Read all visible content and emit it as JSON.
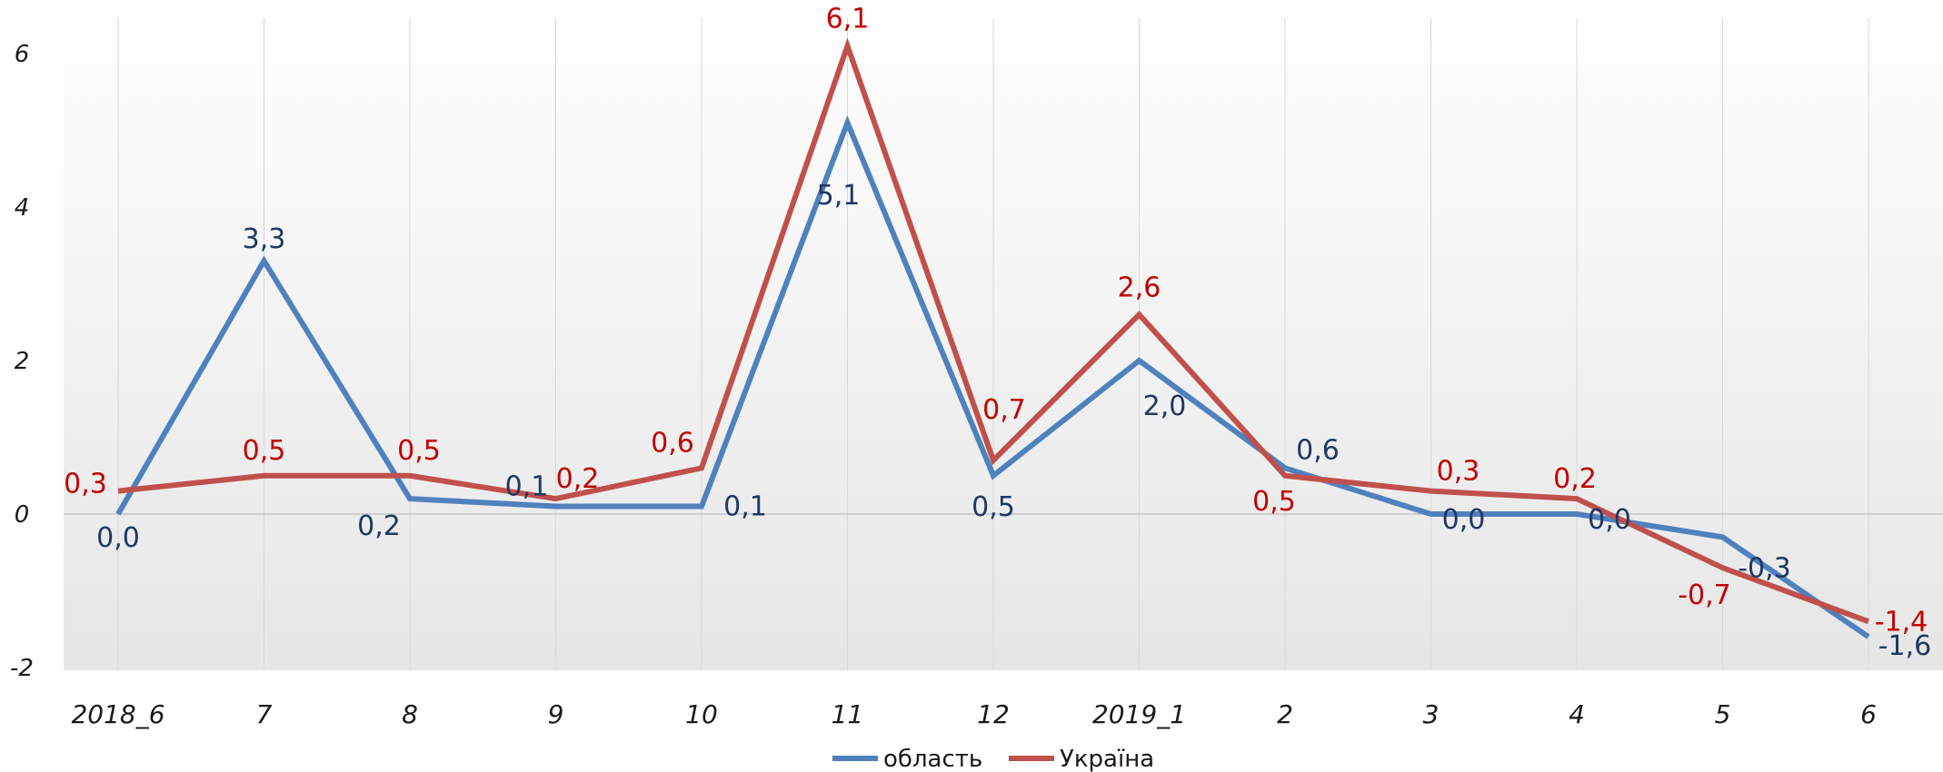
{
  "chart_data": {
    "type": "line",
    "categories": [
      "2018_6",
      "7",
      "8",
      "9",
      "10",
      "11",
      "12",
      "2019_1",
      "2",
      "3",
      "4",
      "5",
      "6"
    ],
    "ylim": [
      -2,
      6.5
    ],
    "yticks": [
      -2,
      0,
      2,
      4,
      6
    ],
    "grid": "vertical",
    "legend_position": "bottom",
    "series": [
      {
        "name": "область",
        "color": "#4f81bd",
        "label_color": "#1f3864",
        "values": [
          0.0,
          3.3,
          0.2,
          0.1,
          0.1,
          5.1,
          0.5,
          2.0,
          0.6,
          0.0,
          0.0,
          -0.3,
          -1.6
        ],
        "labels": [
          "0,0",
          "3,3",
          "0,2",
          "0,1",
          "0,1",
          "5,1",
          "0,5",
          "2,0",
          "0,6",
          "0,0",
          "0,0",
          "-0,3",
          "-1,6"
        ]
      },
      {
        "name": "Україна",
        "color": "#c0504d",
        "label_color": "#c00000",
        "values": [
          0.3,
          0.5,
          0.5,
          0.2,
          0.6,
          6.1,
          0.7,
          2.6,
          0.5,
          0.3,
          0.2,
          -0.7,
          -1.4
        ],
        "labels": [
          "0,3",
          "0,5",
          "0,5",
          "0,2",
          "0,6",
          "6,1",
          "0,7",
          "2,6",
          "0,5",
          "0,3",
          "0,2",
          "-0,7",
          "-1,4"
        ]
      }
    ]
  }
}
